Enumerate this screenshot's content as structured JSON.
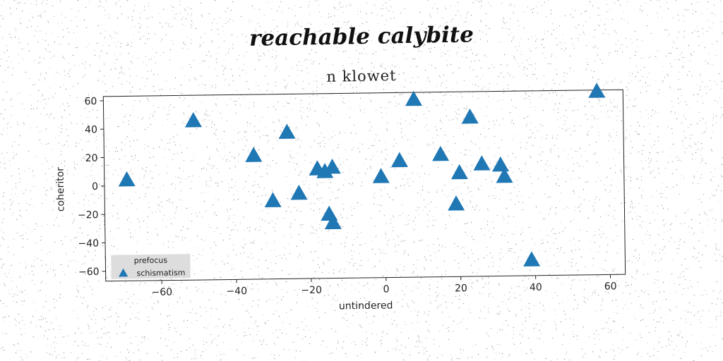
{
  "chart_data": {
    "type": "scatter",
    "suptitle": "reachable calybite",
    "title": "n klowet",
    "xlabel": "untindered",
    "ylabel": "coheritor",
    "xlim": [
      -75,
      64
    ],
    "ylim": [
      -67,
      63
    ],
    "xticks": [
      -60,
      -40,
      -20,
      0,
      20,
      40,
      60
    ],
    "yticks": [
      -60,
      -40,
      -20,
      0,
      20,
      40,
      60
    ],
    "xtick_labels": [
      "−60",
      "−40",
      "−20",
      "0",
      "20",
      "40",
      "60"
    ],
    "ytick_labels": [
      "−60",
      "−40",
      "−20",
      "0",
      "20",
      "40",
      "60"
    ],
    "grid": false,
    "legend": {
      "title": "prefocus",
      "placement": "bottom-left"
    },
    "series": [
      {
        "name": "schismatism",
        "marker": "triangle",
        "color": "#1f77b4",
        "x": [
          -69,
          -51,
          -35,
          -26,
          -30,
          -23,
          -18,
          -16,
          -14,
          -15,
          -14,
          -1,
          4,
          8,
          15,
          20,
          19,
          23,
          26,
          31,
          32,
          39,
          57
        ],
        "y": [
          4,
          45,
          20,
          36,
          -12,
          -7,
          10,
          8,
          11,
          -22,
          -28,
          4,
          15,
          58,
          19,
          6,
          -16,
          45,
          12,
          11,
          3,
          -56,
          62
        ]
      }
    ]
  }
}
